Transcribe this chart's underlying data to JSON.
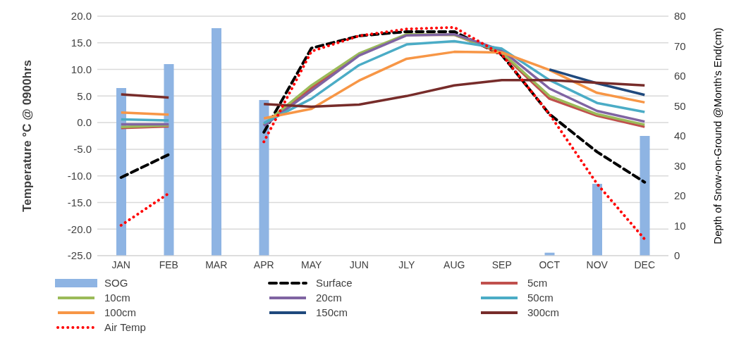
{
  "chart_data": {
    "type": "line",
    "categories": [
      "JAN",
      "FEB",
      "MAR",
      "APR",
      "MAY",
      "JUN",
      "JLY",
      "AUG",
      "SEP",
      "OCT",
      "NOV",
      "DEC"
    ],
    "ylabel": "Temperature °C @ 0900hrs",
    "y2label": "Depth of Snow-on-Ground @Month's End(cm)",
    "ylim": [
      -25,
      20
    ],
    "yticks": [
      {
        "value": -25,
        "label": "-25.0"
      },
      {
        "value": -20,
        "label": "-20.0"
      },
      {
        "value": -15,
        "label": "-15.0"
      },
      {
        "value": -10,
        "label": "-10.0"
      },
      {
        "value": -5,
        "label": "-5.0"
      },
      {
        "value": 0,
        "label": "0.0"
      },
      {
        "value": 5,
        "label": "5.0"
      },
      {
        "value": 10,
        "label": "10.0"
      },
      {
        "value": 15,
        "label": "15.0"
      },
      {
        "value": 20,
        "label": "20.0"
      }
    ],
    "y2lim": [
      0,
      80
    ],
    "y2ticks": [
      0,
      10,
      20,
      30,
      40,
      50,
      60,
      70,
      80
    ],
    "grid": "y",
    "legend": "bottom",
    "marker": "none",
    "series": [
      {
        "name": "SOG",
        "type": "bar",
        "axis": "y2",
        "color": "#8eb4e3",
        "values": [
          56,
          64,
          76,
          52,
          null,
          null,
          null,
          null,
          null,
          1,
          24,
          40
        ]
      },
      {
        "name": "Surface",
        "color": "#000000",
        "line_style": "dashed",
        "values": [
          -10.3,
          -6.0,
          null,
          -1.8,
          14.0,
          16.3,
          17.1,
          17.1,
          12.7,
          1.6,
          -5.5,
          -11.2
        ]
      },
      {
        "name": "5cm",
        "color": "#c0504d",
        "values": [
          -1.0,
          -0.7,
          null,
          -0.5,
          6.5,
          12.8,
          16.5,
          16.5,
          13.0,
          4.5,
          1.3,
          -0.8
        ]
      },
      {
        "name": "10cm",
        "color": "#9bbb59",
        "values": [
          -0.8,
          -0.5,
          null,
          -0.3,
          7.0,
          13.0,
          16.6,
          16.5,
          13.2,
          5.0,
          1.6,
          -0.4
        ]
      },
      {
        "name": "20cm",
        "color": "#8064a2",
        "values": [
          -0.3,
          -0.3,
          null,
          -0.6,
          6.0,
          12.6,
          16.4,
          16.6,
          13.6,
          6.4,
          2.2,
          0.2
        ]
      },
      {
        "name": "50cm",
        "color": "#4bacc6",
        "values": [
          0.6,
          0.4,
          null,
          -0.1,
          4.5,
          10.8,
          14.7,
          15.3,
          13.9,
          8.0,
          3.7,
          2.0
        ]
      },
      {
        "name": "100cm",
        "color": "#f79646",
        "values": [
          1.9,
          1.5,
          null,
          0.8,
          2.6,
          7.9,
          12.0,
          13.3,
          13.2,
          9.9,
          5.6,
          3.8
        ]
      },
      {
        "name": "150cm",
        "color": "#1f497d",
        "values": [
          null,
          null,
          null,
          null,
          null,
          null,
          null,
          null,
          null,
          10.0,
          7.4,
          5.2
        ]
      },
      {
        "name": "300cm",
        "color": "#772c2a",
        "values": [
          5.3,
          4.7,
          null,
          3.5,
          3.0,
          3.4,
          5.0,
          7.0,
          8.0,
          8.0,
          7.5,
          7.0
        ]
      },
      {
        "name": "Air Temp",
        "color": "#ff0000",
        "line_style": "dotted",
        "values": [
          -19.3,
          -13.3,
          null,
          -3.6,
          13.4,
          16.3,
          17.6,
          17.9,
          12.8,
          1.6,
          -11.5,
          -21.9
        ]
      }
    ]
  }
}
